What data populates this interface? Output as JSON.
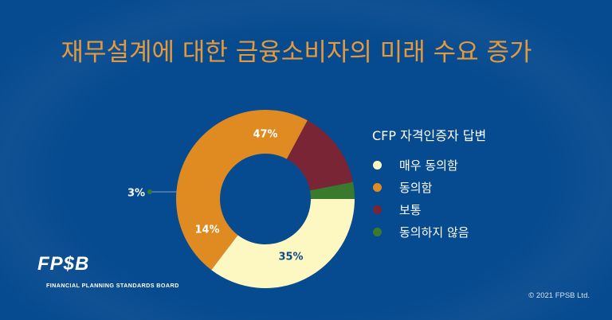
{
  "title": "재무설계에 대한 금융소비자의 미래 수요 증가",
  "legend": {
    "title": "CFP 자격인증자 답변",
    "items": [
      {
        "label": "매우 동의함",
        "color": "#fdf8c2"
      },
      {
        "label": "동의함",
        "color": "#e08b22"
      },
      {
        "label": "보통",
        "color": "#7a2535"
      },
      {
        "label": "동의하지 않음",
        "color": "#3a7a2e"
      }
    ]
  },
  "slice_labels": {
    "very_agree": "35%",
    "agree": "47%",
    "neutral": "14%",
    "disagree": "3%"
  },
  "logo": {
    "mark": "FP$B",
    "subtitle": "FINANCIAL PLANNING STANDARDS BOARD"
  },
  "copyright": "© 2021 FPSB Ltd.",
  "chart_data": {
    "type": "pie",
    "subtype": "donut",
    "title": "재무설계에 대한 금융소비자의 미래 수요 증가",
    "legend_title": "CFP 자격인증자 답변",
    "legend_position": "right",
    "categories": [
      "매우 동의함",
      "동의함",
      "보통",
      "동의하지 않음"
    ],
    "values": [
      35,
      47,
      14,
      3
    ],
    "unit": "%",
    "colors": [
      "#fdf8c2",
      "#e08b22",
      "#7a2535",
      "#3a7a2e"
    ]
  }
}
